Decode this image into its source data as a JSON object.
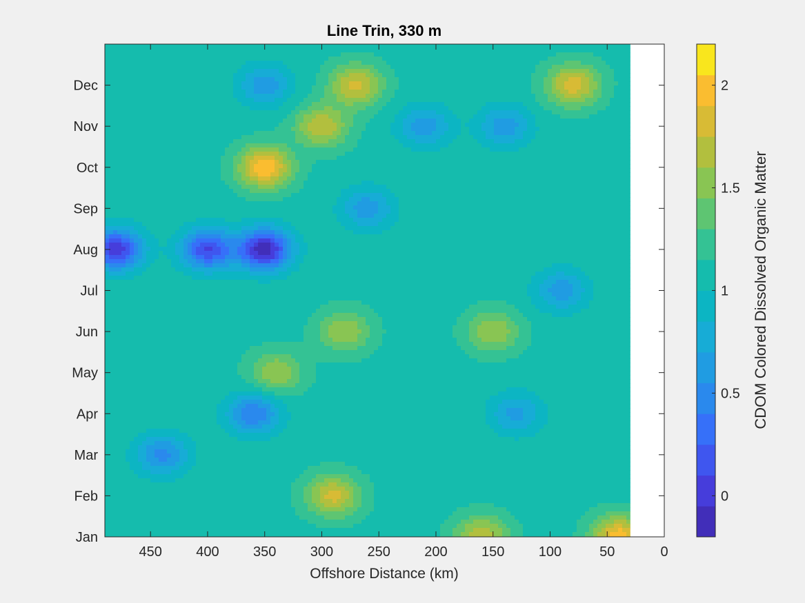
{
  "chart_data": {
    "type": "heatmap",
    "title": "Line Trin, 330 m",
    "xlabel": "Offshore Distance (km)",
    "ylabel": "",
    "x_axis_reversed": true,
    "xlim": [
      0,
      490
    ],
    "data_x_extent": [
      30,
      490
    ],
    "x_ticks": [
      450,
      400,
      350,
      300,
      250,
      200,
      150,
      100,
      50,
      0
    ],
    "y_tick_labels": [
      "Jan",
      "Feb",
      "Mar",
      "Apr",
      "May",
      "Jun",
      "Jul",
      "Aug",
      "Sep",
      "Oct",
      "Nov",
      "Dec"
    ],
    "colorbar": {
      "label": "CDOM Colored Dissolved Organic Matter",
      "range": [
        -0.2,
        2.2
      ],
      "ticks": [
        0,
        0.5,
        1,
        1.5,
        2
      ],
      "levels": 16,
      "colormap": "parula"
    },
    "features": [
      {
        "distance_km": 350,
        "month": "Aug",
        "value": -0.15
      },
      {
        "distance_km": 400,
        "month": "Aug",
        "value": 0.1
      },
      {
        "distance_km": 480,
        "month": "Aug",
        "value": 0.0
      },
      {
        "distance_km": 350,
        "month": "Oct",
        "value": 2.05
      },
      {
        "distance_km": 300,
        "month": "Nov",
        "value": 1.75
      },
      {
        "distance_km": 270,
        "month": "Dec",
        "value": 1.8
      },
      {
        "distance_km": 80,
        "month": "Dec",
        "value": 1.85
      },
      {
        "distance_km": 40,
        "month": "Jan",
        "value": 2.0
      },
      {
        "distance_km": 160,
        "month": "Jan",
        "value": 1.75
      },
      {
        "distance_km": 290,
        "month": "Feb",
        "value": 1.8
      },
      {
        "distance_km": 360,
        "month": "Apr",
        "value": 0.4
      },
      {
        "distance_km": 440,
        "month": "Mar",
        "value": 0.5
      },
      {
        "distance_km": 210,
        "month": "Nov",
        "value": 0.6
      },
      {
        "distance_km": 140,
        "month": "Nov",
        "value": 0.6
      },
      {
        "distance_km": 350,
        "month": "Dec",
        "value": 0.6
      },
      {
        "distance_km": 260,
        "month": "Sep",
        "value": 0.6
      },
      {
        "distance_km": 150,
        "month": "Jun",
        "value": 1.6
      },
      {
        "distance_km": 280,
        "month": "Jun",
        "value": 1.6
      },
      {
        "distance_km": 340,
        "month": "May",
        "value": 1.6
      },
      {
        "distance_km": 90,
        "month": "Jul",
        "value": 0.6
      },
      {
        "distance_km": 130,
        "month": "Apr",
        "value": 0.65
      }
    ]
  }
}
